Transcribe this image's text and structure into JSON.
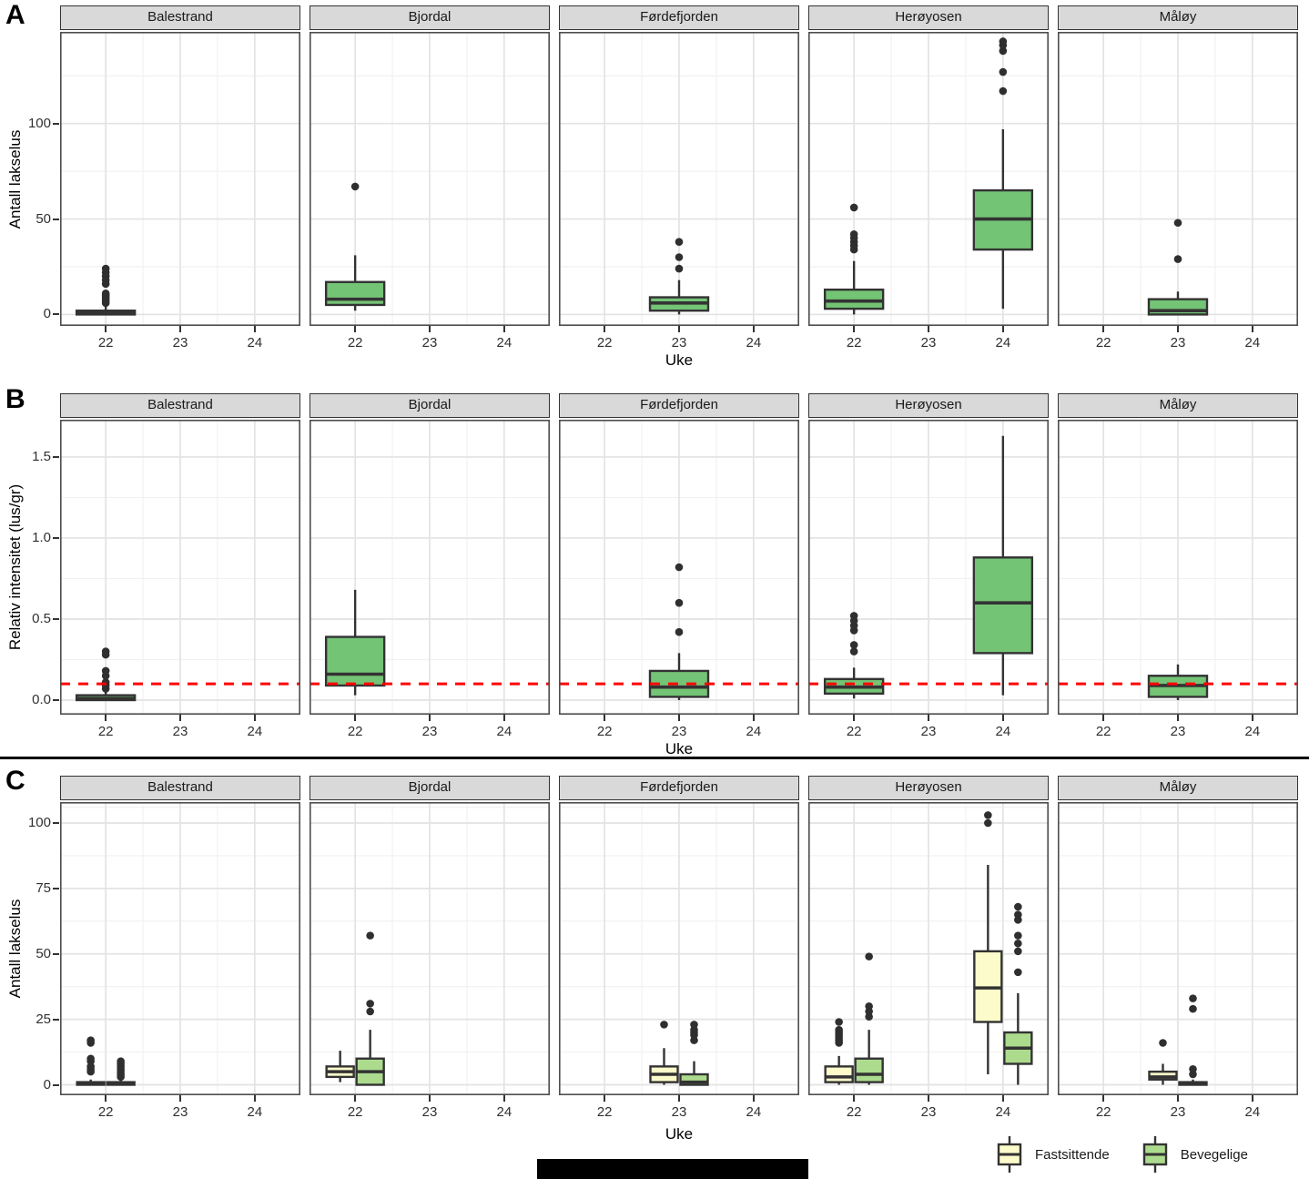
{
  "figure": {
    "background": "#FFFFFF",
    "stroke_color": "#333333",
    "panel_border_color": "#4D4D4D",
    "strip_bg": "#D9D9D9",
    "grid_major_color": "#E3E3E3",
    "grid_minor_color": "#F1F1F1",
    "outlier_color": "#2F2F2F",
    "has_separator_line": true,
    "has_redaction_bar": true
  },
  "chart_data": {
    "type": "boxplot-facets",
    "rows": [
      {
        "label": "A",
        "ylabel": "Antall lakselus",
        "xlabel": "Uke",
        "ylim": [
          -6,
          148
        ],
        "yticks": [
          [
            0,
            "0"
          ],
          [
            50,
            "50"
          ],
          [
            100,
            "100"
          ]
        ],
        "yminor": [
          25,
          75,
          125
        ],
        "weeks": [
          22,
          23,
          24
        ],
        "week_labels": [
          "22",
          "23",
          "24"
        ],
        "series": [
          {
            "name": "single",
            "fill": "#74C476"
          }
        ],
        "hline": null,
        "facets": [
          {
            "name": "Balestrand",
            "boxes": [
              {
                "week": 22,
                "series": 0,
                "w_low": 0,
                "q1": 0,
                "median": 1,
                "q3": 2,
                "w_high": 4,
                "outliers": [
                  6,
                  7,
                  8,
                  9,
                  10,
                  11,
                  16,
                  18,
                  20,
                  22,
                  24
                ]
              }
            ]
          },
          {
            "name": "Bjordal",
            "boxes": [
              {
                "week": 22,
                "series": 0,
                "w_low": 2,
                "q1": 5,
                "median": 8,
                "q3": 17,
                "w_high": 31,
                "outliers": [
                  67
                ]
              }
            ]
          },
          {
            "name": "Førdefjorden",
            "boxes": [
              {
                "week": 23,
                "series": 0,
                "w_low": 0,
                "q1": 2,
                "median": 6,
                "q3": 9,
                "w_high": 18,
                "outliers": [
                  24,
                  30,
                  38
                ]
              }
            ]
          },
          {
            "name": "Herøyosen",
            "boxes": [
              {
                "week": 22,
                "series": 0,
                "w_low": 0,
                "q1": 3,
                "median": 7,
                "q3": 13,
                "w_high": 28,
                "outliers": [
                  34,
                  36,
                  38,
                  40,
                  42,
                  56
                ]
              },
              {
                "week": 24,
                "series": 0,
                "w_low": 3,
                "q1": 34,
                "median": 50,
                "q3": 65,
                "w_high": 97,
                "outliers": [
                  117,
                  127,
                  138,
                  141,
                  143
                ]
              }
            ]
          },
          {
            "name": "Måløy",
            "boxes": [
              {
                "week": 23,
                "series": 0,
                "w_low": 0,
                "q1": 0,
                "median": 2,
                "q3": 8,
                "w_high": 12,
                "outliers": [
                  29,
                  48
                ]
              }
            ]
          }
        ]
      },
      {
        "label": "B",
        "ylabel": "Relativ intensitet (lus/gr)",
        "xlabel": "Uke",
        "ylim": [
          -0.09,
          1.73
        ],
        "yticks": [
          [
            0,
            "0.0"
          ],
          [
            0.5,
            "0.5"
          ],
          [
            1,
            "1.0"
          ],
          [
            1.5,
            "1.5"
          ]
        ],
        "yminor": [
          0.25,
          0.75,
          1.25
        ],
        "weeks": [
          22,
          23,
          24
        ],
        "week_labels": [
          "22",
          "23",
          "24"
        ],
        "series": [
          {
            "name": "single",
            "fill": "#74C476"
          }
        ],
        "hline": {
          "y": 0.1,
          "color": "#FF0000",
          "style": "dashed"
        },
        "facets": [
          {
            "name": "Balestrand",
            "boxes": [
              {
                "week": 22,
                "series": 0,
                "w_low": 0,
                "q1": 0,
                "median": 0.01,
                "q3": 0.03,
                "w_high": 0.05,
                "outliers": [
                  0.07,
                  0.09,
                  0.11,
                  0.15,
                  0.18,
                  0.28,
                  0.3
                ]
              }
            ]
          },
          {
            "name": "Bjordal",
            "boxes": [
              {
                "week": 22,
                "series": 0,
                "w_low": 0.03,
                "q1": 0.09,
                "median": 0.16,
                "q3": 0.39,
                "w_high": 0.68,
                "outliers": []
              }
            ]
          },
          {
            "name": "Førdefjorden",
            "boxes": [
              {
                "week": 23,
                "series": 0,
                "w_low": 0,
                "q1": 0.02,
                "median": 0.08,
                "q3": 0.18,
                "w_high": 0.29,
                "outliers": [
                  0.42,
                  0.6,
                  0.82
                ]
              }
            ]
          },
          {
            "name": "Herøyosen",
            "boxes": [
              {
                "week": 22,
                "series": 0,
                "w_low": 0.01,
                "q1": 0.04,
                "median": 0.08,
                "q3": 0.13,
                "w_high": 0.2,
                "outliers": [
                  0.3,
                  0.34,
                  0.43,
                  0.46,
                  0.49,
                  0.52
                ]
              },
              {
                "week": 24,
                "series": 0,
                "w_low": 0.03,
                "q1": 0.29,
                "median": 0.6,
                "q3": 0.88,
                "w_high": 1.63,
                "outliers": []
              }
            ]
          },
          {
            "name": "Måløy",
            "boxes": [
              {
                "week": 23,
                "series": 0,
                "w_low": 0,
                "q1": 0.02,
                "median": 0.09,
                "q3": 0.15,
                "w_high": 0.22,
                "outliers": []
              }
            ]
          }
        ]
      },
      {
        "label": "C",
        "ylabel": "Antall lakselus",
        "xlabel": "Uke",
        "ylim": [
          -4,
          108
        ],
        "yticks": [
          [
            0,
            "0"
          ],
          [
            25,
            "25"
          ],
          [
            50,
            "50"
          ],
          [
            75,
            "75"
          ],
          [
            100,
            "100"
          ]
        ],
        "yminor": [
          12.5,
          37.5,
          62.5,
          87.5,
          106
        ],
        "weeks": [
          22,
          23,
          24
        ],
        "week_labels": [
          "22",
          "23",
          "24"
        ],
        "series": [
          {
            "name": "Fastsittende",
            "fill": "#FCFCCB"
          },
          {
            "name": "Bevegelige",
            "fill": "#ACDB8E"
          }
        ],
        "hline": null,
        "legend": true,
        "facets": [
          {
            "name": "Balestrand",
            "boxes": [
              {
                "week": 22,
                "series": 0,
                "w_low": 0,
                "q1": 0,
                "median": 0.5,
                "q3": 1,
                "w_high": 2,
                "outliers": [
                  5,
                  6,
                  7,
                  9,
                  10,
                  16,
                  17
                ]
              },
              {
                "week": 22,
                "series": 1,
                "w_low": 0,
                "q1": 0,
                "median": 0.5,
                "q3": 1,
                "w_high": 2,
                "outliers": [
                  3,
                  4,
                  5,
                  6,
                  7,
                  8,
                  9
                ]
              }
            ]
          },
          {
            "name": "Bjordal",
            "boxes": [
              {
                "week": 22,
                "series": 0,
                "w_low": 1,
                "q1": 3,
                "median": 5,
                "q3": 7,
                "w_high": 13,
                "outliers": []
              },
              {
                "week": 22,
                "series": 1,
                "w_low": 0,
                "q1": 0,
                "median": 5,
                "q3": 10,
                "w_high": 21,
                "outliers": [
                  28,
                  31,
                  57
                ]
              }
            ]
          },
          {
            "name": "Førdefjorden",
            "boxes": [
              {
                "week": 23,
                "series": 0,
                "w_low": 0,
                "q1": 1,
                "median": 4,
                "q3": 7,
                "w_high": 14,
                "outliers": [
                  23
                ]
              },
              {
                "week": 23,
                "series": 1,
                "w_low": 0,
                "q1": 0,
                "median": 1,
                "q3": 4,
                "w_high": 9,
                "outliers": [
                  17,
                  19,
                  20,
                  21,
                  23
                ]
              }
            ]
          },
          {
            "name": "Herøyosen",
            "boxes": [
              {
                "week": 22,
                "series": 0,
                "w_low": 0,
                "q1": 1,
                "median": 3,
                "q3": 7,
                "w_high": 11,
                "outliers": [
                  16,
                  17,
                  18,
                  19,
                  20,
                  21,
                  24
                ]
              },
              {
                "week": 22,
                "series": 1,
                "w_low": 0,
                "q1": 1,
                "median": 4,
                "q3": 10,
                "w_high": 21,
                "outliers": [
                  26,
                  28,
                  30,
                  49
                ]
              },
              {
                "week": 24,
                "series": 0,
                "w_low": 4,
                "q1": 24,
                "median": 37,
                "q3": 51,
                "w_high": 84,
                "outliers": [
                  100,
                  103
                ]
              },
              {
                "week": 24,
                "series": 1,
                "w_low": 0,
                "q1": 8,
                "median": 14,
                "q3": 20,
                "w_high": 35,
                "outliers": [
                  43,
                  51,
                  54,
                  57,
                  63,
                  65,
                  68
                ]
              }
            ]
          },
          {
            "name": "Måløy",
            "boxes": [
              {
                "week": 23,
                "series": 0,
                "w_low": 0,
                "q1": 2,
                "median": 3,
                "q3": 5,
                "w_high": 8,
                "outliers": [
                  16
                ]
              },
              {
                "week": 23,
                "series": 1,
                "w_low": 0,
                "q1": 0,
                "median": 0.5,
                "q3": 1,
                "w_high": 2,
                "outliers": [
                  4,
                  6,
                  29,
                  33
                ]
              }
            ]
          }
        ]
      }
    ],
    "legend": {
      "position": "bottom-right",
      "items": [
        {
          "label": "Fastsittende",
          "fill": "#FCFCCB"
        },
        {
          "label": "Bevegelige",
          "fill": "#ACDB8E"
        }
      ]
    }
  }
}
